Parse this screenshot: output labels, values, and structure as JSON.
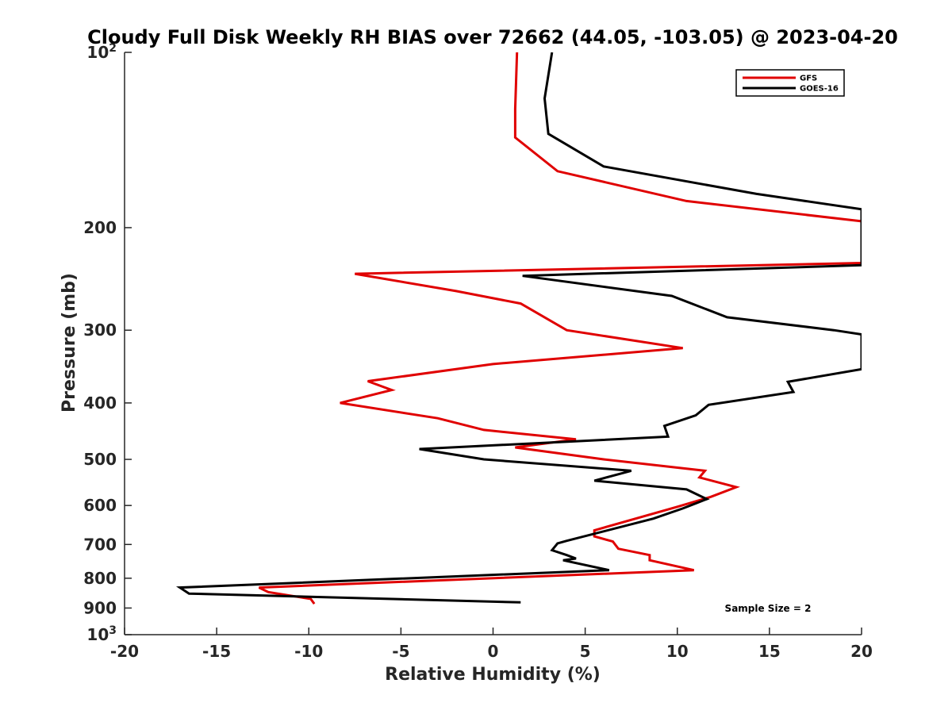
{
  "chart_data": {
    "type": "line",
    "title": "Cloudy Full Disk Weekly RH BIAS over 72662 (44.05, -103.05) @ 2023-04-20",
    "xlabel": "Relative Humidity (%)",
    "ylabel": "Pressure (mb)",
    "xlim": [
      -20,
      20
    ],
    "ylim": [
      100,
      1000
    ],
    "y_scale": "log",
    "y_reversed": true,
    "grid": false,
    "legend_position": "top-right",
    "x_ticks": [
      "-20",
      "-15",
      "-10",
      "-5",
      "0",
      "5",
      "10",
      "15",
      "20"
    ],
    "y_ticks": [
      {
        "value": 100,
        "base": "10",
        "exp": "2"
      },
      {
        "value": 200,
        "label": "200"
      },
      {
        "value": 300,
        "label": "300"
      },
      {
        "value": 400,
        "label": "400"
      },
      {
        "value": 500,
        "label": "500"
      },
      {
        "value": 600,
        "label": "600"
      },
      {
        "value": 700,
        "label": "700"
      },
      {
        "value": 800,
        "label": "800"
      },
      {
        "value": 900,
        "label": "900"
      },
      {
        "value": 1000,
        "base": "10",
        "exp": "3"
      }
    ],
    "annotation": "Sample Size = 2",
    "series": [
      {
        "name": "GFS",
        "color": "#e00000",
        "points": [
          [
            1.3,
            100
          ],
          [
            1.2,
            125
          ],
          [
            1.2,
            140
          ],
          [
            3.5,
            160
          ],
          [
            10.5,
            180
          ],
          [
            20,
            195
          ],
          [
            20,
            230
          ],
          [
            -7.5,
            240
          ],
          [
            -2.0,
            257
          ],
          [
            1.5,
            270
          ],
          [
            4.0,
            300
          ],
          [
            10.3,
            322
          ],
          [
            0,
            343
          ],
          [
            -6.8,
            367
          ],
          [
            -5.5,
            380
          ],
          [
            -8.3,
            400
          ],
          [
            -3.0,
            425
          ],
          [
            -0.5,
            445
          ],
          [
            4.5,
            462
          ],
          [
            1.2,
            477
          ],
          [
            6.0,
            500
          ],
          [
            11.5,
            523
          ],
          [
            11.2,
            537
          ],
          [
            13.2,
            558
          ],
          [
            11.8,
            580
          ],
          [
            10.0,
            603
          ],
          [
            5.5,
            662
          ],
          [
            5.5,
            678
          ],
          [
            6.5,
            692
          ],
          [
            6.8,
            712
          ],
          [
            8.5,
            730
          ],
          [
            8.5,
            745
          ],
          [
            10.9,
            775
          ],
          [
            -12.7,
            830
          ],
          [
            -12.2,
            845
          ],
          [
            -9.9,
            868
          ],
          [
            -9.7,
            885
          ]
        ]
      },
      {
        "name": "GOES-16",
        "color": "#000000",
        "points": [
          [
            3.2,
            100
          ],
          [
            2.8,
            120
          ],
          [
            3.0,
            138
          ],
          [
            6.0,
            157
          ],
          [
            14.3,
            175
          ],
          [
            20,
            186
          ],
          [
            20,
            232
          ],
          [
            1.6,
            242
          ],
          [
            9.7,
            262
          ],
          [
            12.7,
            285
          ],
          [
            18.5,
            300
          ],
          [
            20,
            305
          ],
          [
            20,
            350
          ],
          [
            16.0,
            368
          ],
          [
            16.3,
            383
          ],
          [
            11.7,
            403
          ],
          [
            11.0,
            420
          ],
          [
            9.3,
            438
          ],
          [
            9.5,
            457
          ],
          [
            -4.0,
            480
          ],
          [
            -0.5,
            500
          ],
          [
            7.5,
            523
          ],
          [
            5.5,
            544
          ],
          [
            10.5,
            563
          ],
          [
            11.6,
            585
          ],
          [
            10.3,
            607
          ],
          [
            8.7,
            632
          ],
          [
            4.0,
            690
          ],
          [
            3.5,
            697
          ],
          [
            3.2,
            716
          ],
          [
            4.0,
            730
          ],
          [
            4.5,
            740
          ],
          [
            3.8,
            745
          ],
          [
            6.3,
            775
          ],
          [
            -17.0,
            830
          ],
          [
            -16.5,
            850
          ],
          [
            1.5,
            880
          ]
        ]
      }
    ]
  }
}
